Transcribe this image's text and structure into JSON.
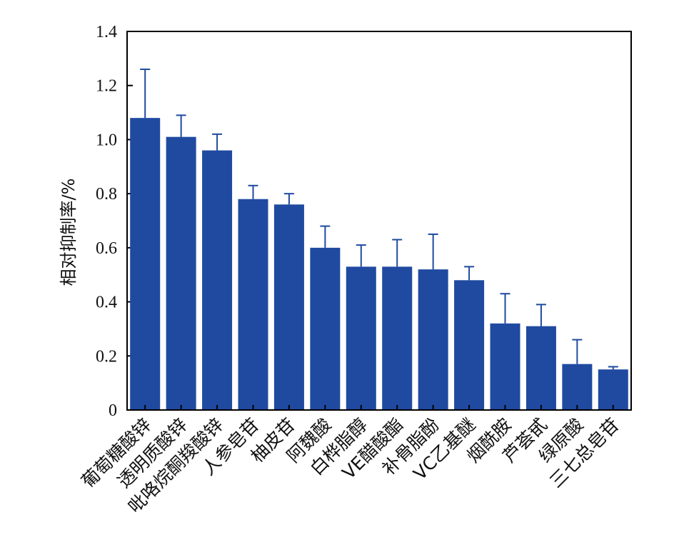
{
  "colors": {
    "bar": "#1f4aa0",
    "error": "#1f4aa0",
    "axis": "#000000"
  },
  "chart_data": {
    "type": "bar",
    "title": "",
    "xlabel": "",
    "ylabel": "相对抑制率/%",
    "ylim": [
      0,
      1.4
    ],
    "yticks": [
      0,
      0.2,
      0.4,
      0.6,
      0.8,
      1.0,
      1.2,
      1.4
    ],
    "ytick_labels": [
      "0",
      "0.2",
      "0.4",
      "0.6",
      "0.8",
      "1.0",
      "1.2",
      "1.4"
    ],
    "grid": false,
    "categories": [
      "葡萄糖酸锌",
      "透明质酸锌",
      "吡咯烷酮羧酸锌",
      "人参皂苷",
      "柚皮苷",
      "阿魏酸",
      "白桦脂醇",
      "VE醋酸酯",
      "补骨脂酚",
      "VC乙基醚",
      "烟酰胺",
      "芦荟甙",
      "绿原酸",
      "三七总皂苷"
    ],
    "values": [
      1.08,
      1.01,
      0.96,
      0.78,
      0.76,
      0.6,
      0.53,
      0.53,
      0.52,
      0.48,
      0.32,
      0.31,
      0.17,
      0.15
    ],
    "errors": [
      0.18,
      0.08,
      0.06,
      0.05,
      0.04,
      0.08,
      0.08,
      0.1,
      0.13,
      0.05,
      0.11,
      0.08,
      0.09,
      0.01
    ]
  }
}
